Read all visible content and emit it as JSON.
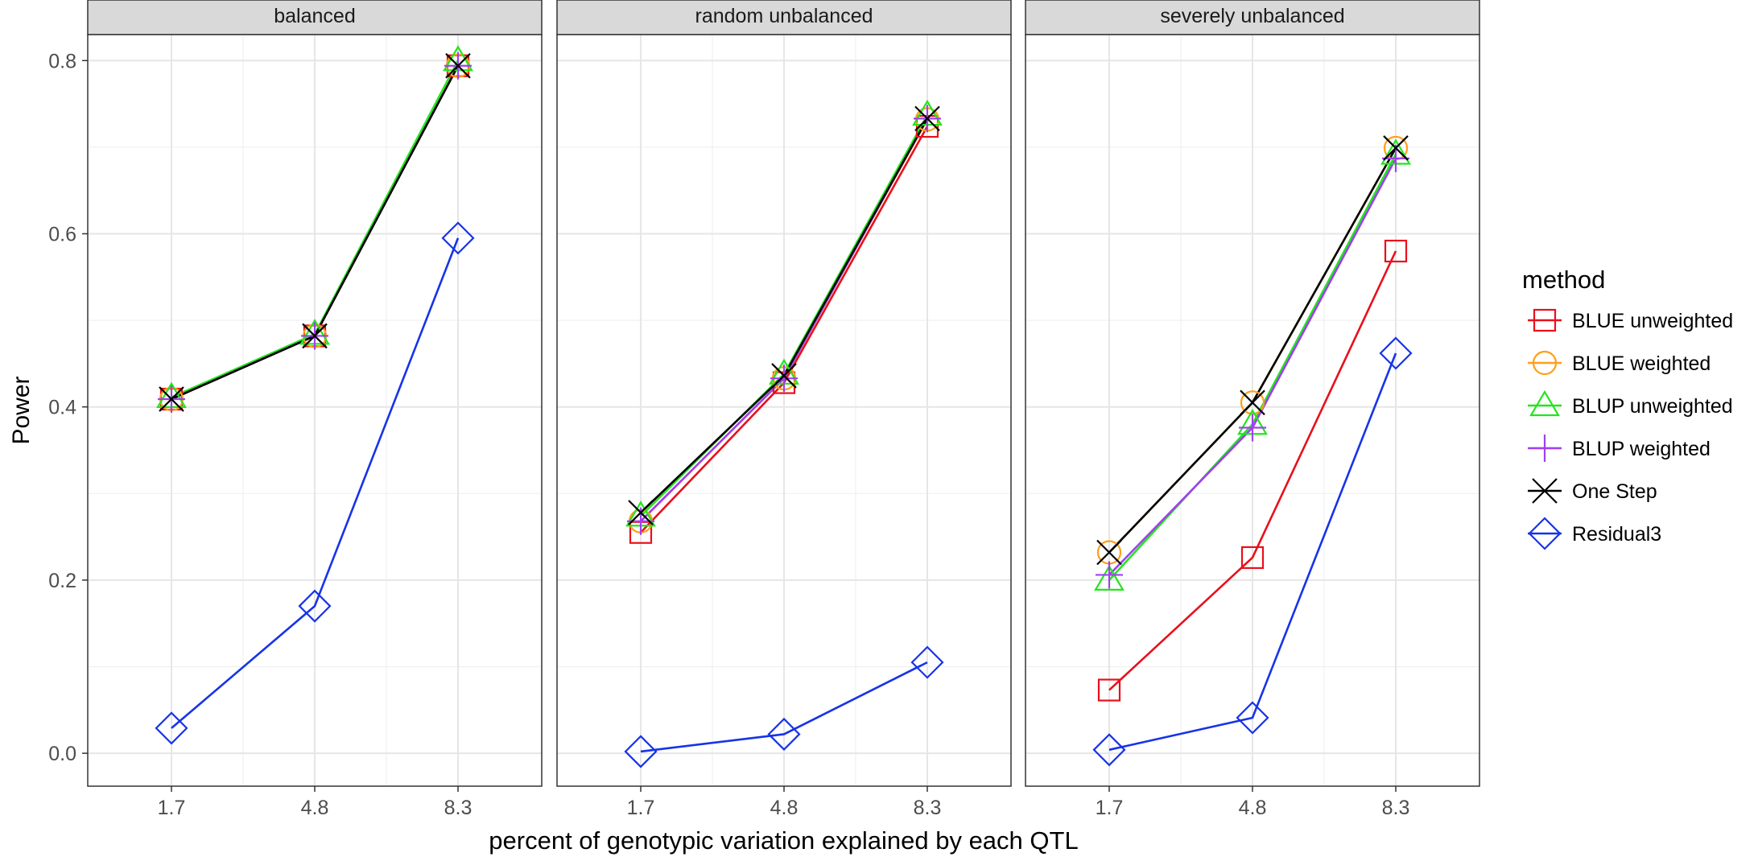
{
  "chart_data": {
    "type": "line",
    "facets": [
      "balanced",
      "random unbalanced",
      "severely unbalanced"
    ],
    "categories": [
      "1.7",
      "4.8",
      "8.3"
    ],
    "xlabel": "percent of genotypic variation explained by each QTL",
    "ylabel": "Power",
    "ylim": [
      -0.038,
      0.83
    ],
    "yticks": [
      "0.0",
      "0.2",
      "0.4",
      "0.6",
      "0.8"
    ],
    "yticks_values": [
      0.0,
      0.2,
      0.4,
      0.6,
      0.8
    ],
    "grid": true,
    "legend": {
      "title": "method",
      "position": "right"
    },
    "series": [
      {
        "name": "BLUE unweighted",
        "color": "#e8101c",
        "marker": "square",
        "values": [
          [
            0.409,
            0.482,
            0.794
          ],
          [
            0.255,
            0.428,
            0.724
          ],
          [
            0.073,
            0.226,
            0.58
          ]
        ]
      },
      {
        "name": "BLUE weighted",
        "color": "#ff9e1a",
        "marker": "circle",
        "values": [
          [
            0.409,
            0.482,
            0.794
          ],
          [
            0.268,
            0.433,
            0.732
          ],
          [
            0.232,
            0.405,
            0.699
          ]
        ]
      },
      {
        "name": "BLUP unweighted",
        "color": "#22e51c",
        "marker": "triangle",
        "values": [
          [
            0.411,
            0.484,
            0.8
          ],
          [
            0.274,
            0.438,
            0.737
          ],
          [
            0.2,
            0.38,
            0.692
          ]
        ]
      },
      {
        "name": "BLUP weighted",
        "color": "#a040ef",
        "marker": "plus",
        "values": [
          [
            0.409,
            0.482,
            0.794
          ],
          [
            0.268,
            0.433,
            0.733
          ],
          [
            0.206,
            0.376,
            0.687
          ]
        ]
      },
      {
        "name": "One Step",
        "color": "#000000",
        "marker": "cross",
        "values": [
          [
            0.409,
            0.482,
            0.794
          ],
          [
            0.278,
            0.436,
            0.733
          ],
          [
            0.232,
            0.405,
            0.699
          ]
        ]
      },
      {
        "name": "Residual3",
        "color": "#1733e8",
        "marker": "diamond",
        "values": [
          [
            0.029,
            0.17,
            0.595
          ],
          [
            0.002,
            0.022,
            0.105
          ],
          [
            0.004,
            0.041,
            0.462
          ]
        ]
      }
    ]
  }
}
